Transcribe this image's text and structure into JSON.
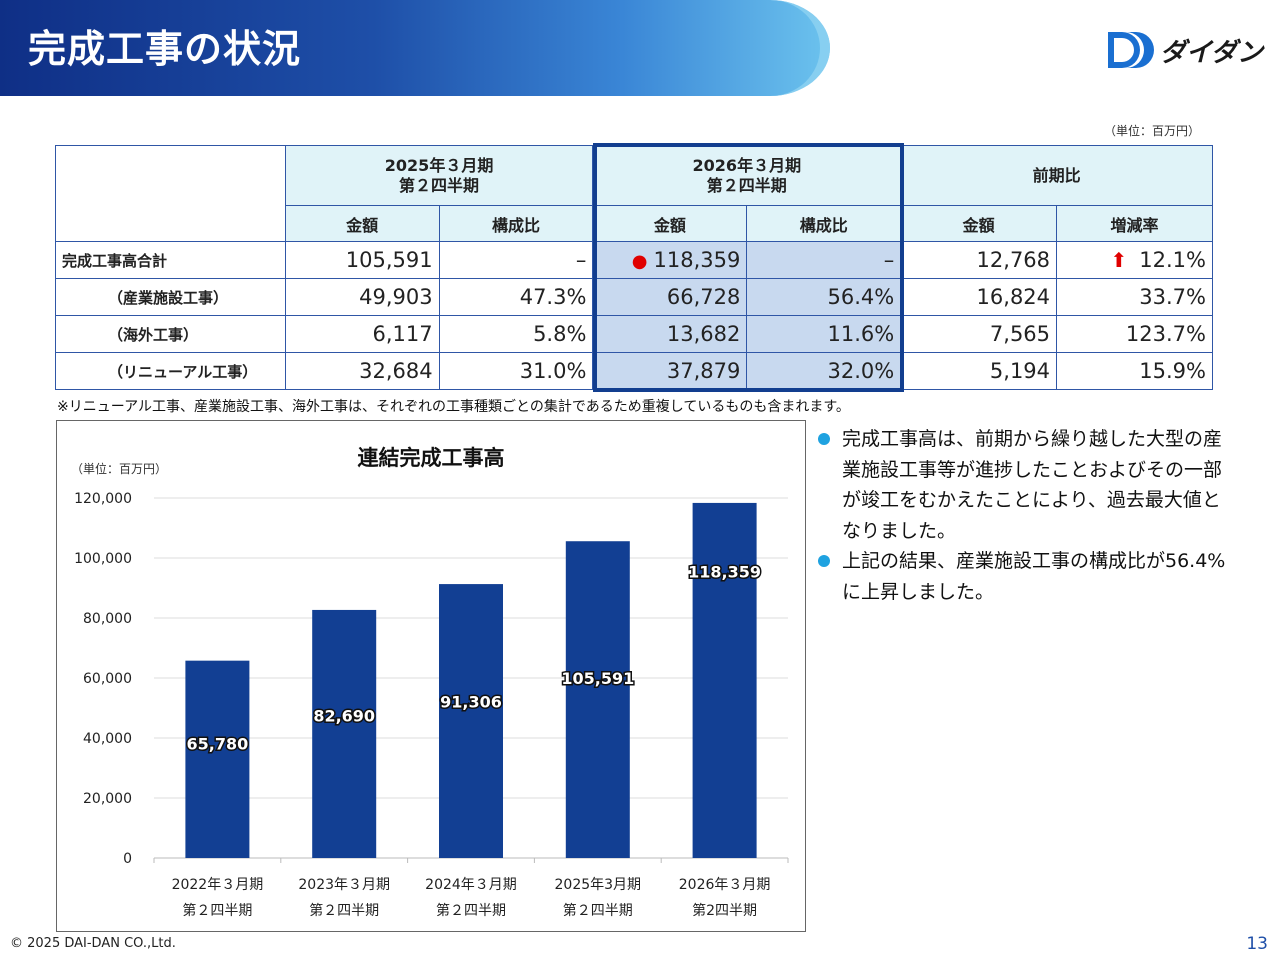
{
  "header": {
    "title": "完成工事の状況"
  },
  "logo": {
    "text": "ダイダン",
    "colors": {
      "mark": "#1a6fd1"
    }
  },
  "table": {
    "unit": "（単位：百万円）",
    "groups": [
      {
        "line1": "2025年３月期",
        "line2": "第２四半期"
      },
      {
        "line1": "2026年３月期",
        "line2": "第２四半期"
      },
      {
        "line1": "前期比"
      }
    ],
    "subheaders": [
      "金額",
      "構成比",
      "金額",
      "構成比",
      "金額",
      "増減率"
    ],
    "rows": [
      {
        "label": "完成工事高合計",
        "prev_amount": "105,591",
        "prev_ratio": "–",
        "cur_amount": "118,359",
        "cur_ratio": "–",
        "diff_amount": "12,768",
        "diff_rate": "12.1%"
      },
      {
        "label": "（産業施設工事）",
        "prev_amount": "49,903",
        "prev_ratio": "47.3%",
        "cur_amount": "66,728",
        "cur_ratio": "56.4%",
        "diff_amount": "16,824",
        "diff_rate": "33.7%"
      },
      {
        "label": "（海外工事）",
        "prev_amount": "6,117",
        "prev_ratio": "5.8%",
        "cur_amount": "13,682",
        "cur_ratio": "11.6%",
        "diff_amount": "7,565",
        "diff_rate": "123.7%"
      },
      {
        "label": "（リニューアル工事）",
        "prev_amount": "32,684",
        "prev_ratio": "31.0%",
        "cur_amount": "37,879",
        "cur_ratio": "32.0%",
        "diff_amount": "5,194",
        "diff_rate": "15.9%"
      }
    ],
    "note": "※リニューアル工事、産業施設工事、海外工事は、それぞれの工事種類ごとの集計であるため重複しているものも含まれます。"
  },
  "bullets": [
    "完成工事高は、前期から繰り越した大型の産業施設工事等が進捗したことおよびその一部が竣工をむかえたことにより、過去最大値となりました。",
    "上記の結果、産業施設工事の構成比が56.4%に上昇しました。"
  ],
  "chart_data": {
    "type": "bar",
    "title": "連結完成工事高",
    "unit_label": "（単位：百万円）",
    "categories": [
      [
        "2022年３月期",
        "第２四半期"
      ],
      [
        "2023年３月期",
        "第２四半期"
      ],
      [
        "2024年３月期",
        "第２四半期"
      ],
      [
        "2025年3月期",
        "第２四半期"
      ],
      [
        "2026年３月期",
        "第2四半期"
      ]
    ],
    "values": [
      65780,
      82690,
      91306,
      105591,
      118359
    ],
    "value_labels": [
      "65,780",
      "82,690",
      "91,306",
      "105,591",
      "118,359"
    ],
    "yticks": [
      0,
      20000,
      40000,
      60000,
      80000,
      100000,
      120000
    ],
    "ytick_labels": [
      "0",
      "20,000",
      "40,000",
      "60,000",
      "80,000",
      "100,000",
      "120,000"
    ],
    "ylim": [
      0,
      120000
    ],
    "bar_color": "#123f93",
    "grid": true
  },
  "footer": {
    "copyright": "© 2025 DAI-DAN CO.,Ltd.",
    "page": "13"
  }
}
